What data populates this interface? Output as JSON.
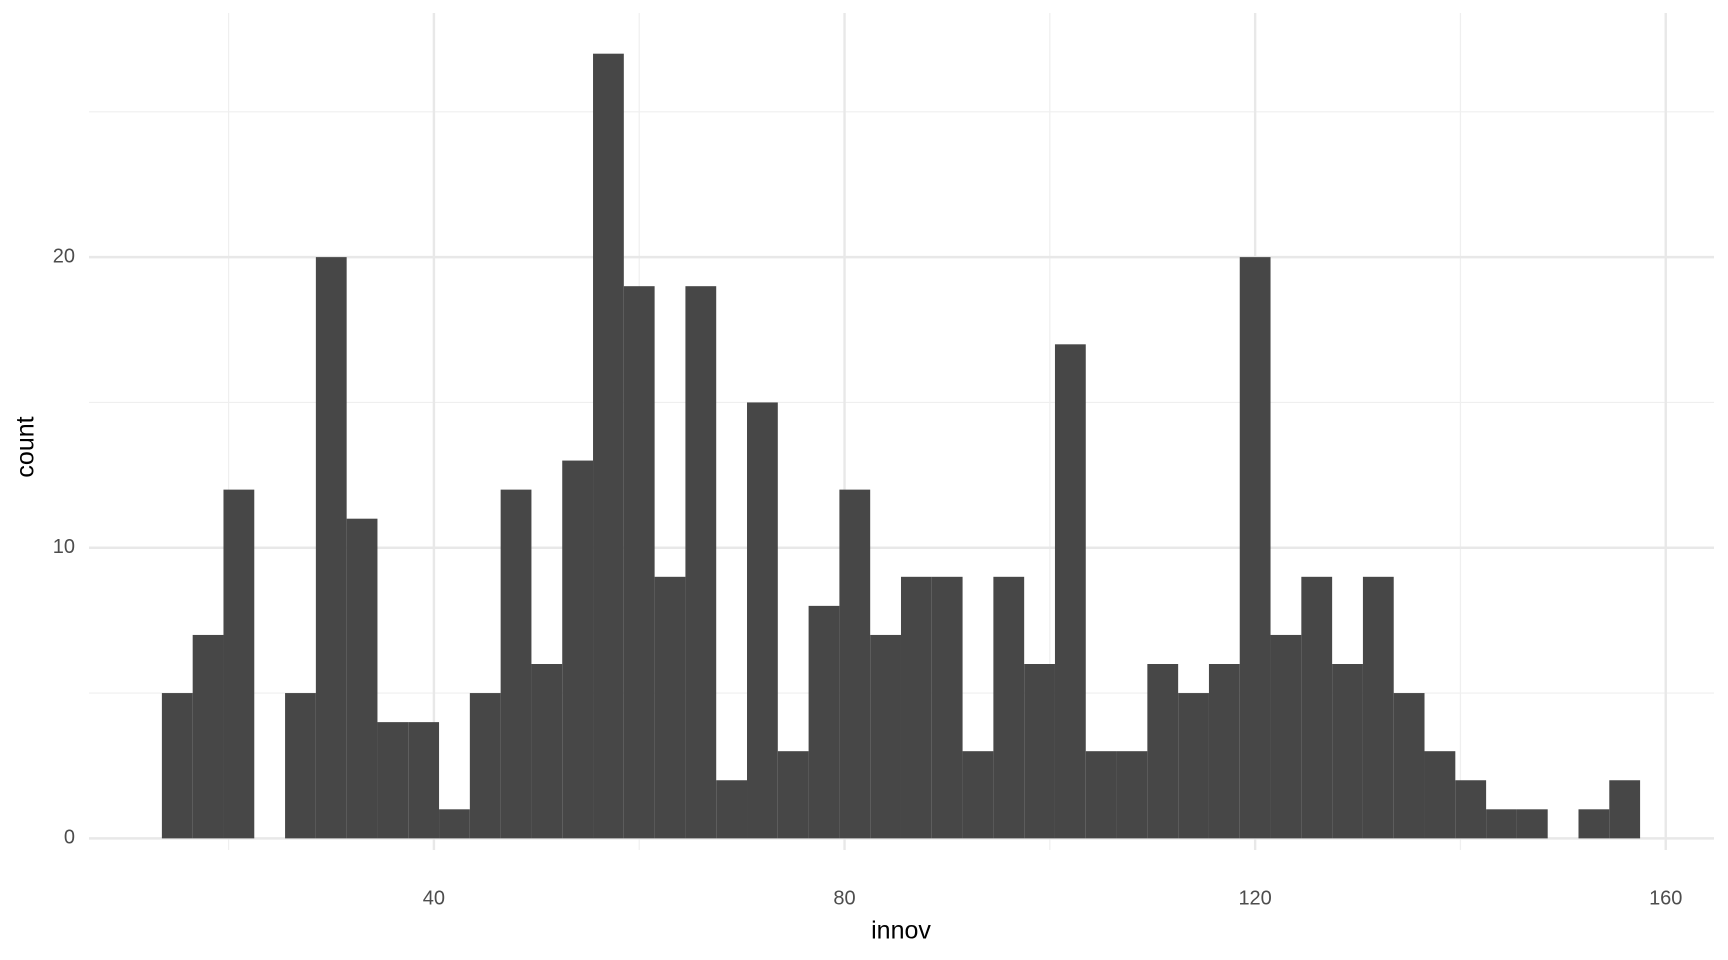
{
  "chart_data": {
    "type": "histogram",
    "xlabel": "innov",
    "ylabel": "count",
    "color": "#474747",
    "bins": [
      13.5,
      16.5,
      19.5,
      22.5,
      25.5,
      28.5,
      31.5,
      34.5,
      37.5,
      40.5,
      43.5,
      46.5,
      49.5,
      52.5,
      55.5,
      58.5,
      61.5,
      64.5,
      67.5,
      70.5,
      73.5,
      76.5,
      79.5,
      82.5,
      85.5,
      88.5,
      91.5,
      94.5,
      97.5,
      100.5,
      103.5,
      106.5,
      109.5,
      112.5,
      115.5,
      118.5,
      121.5,
      124.5,
      127.5,
      130.5,
      133.5,
      136.5,
      139.5,
      142.5,
      145.5,
      148.5,
      151.5,
      154.5,
      157.5
    ],
    "values": [
      5,
      7,
      12,
      0,
      5,
      20,
      11,
      4,
      4,
      1,
      5,
      12,
      6,
      13,
      27,
      19,
      9,
      19,
      2,
      15,
      3,
      8,
      12,
      7,
      9,
      9,
      3,
      9,
      6,
      17,
      3,
      3,
      6,
      5,
      6,
      20,
      7,
      9,
      6,
      9,
      5,
      3,
      2,
      1,
      1,
      0,
      1,
      2
    ],
    "xlim": [
      6.4,
      164.7
    ],
    "ylim": [
      -0.4,
      28.4
    ],
    "xticks": [
      40,
      80,
      120,
      160
    ],
    "yticks": [
      0,
      10,
      20
    ],
    "xminor": [
      20,
      60,
      100,
      140
    ],
    "yminor": [
      5,
      15,
      25
    ],
    "grid": true
  }
}
